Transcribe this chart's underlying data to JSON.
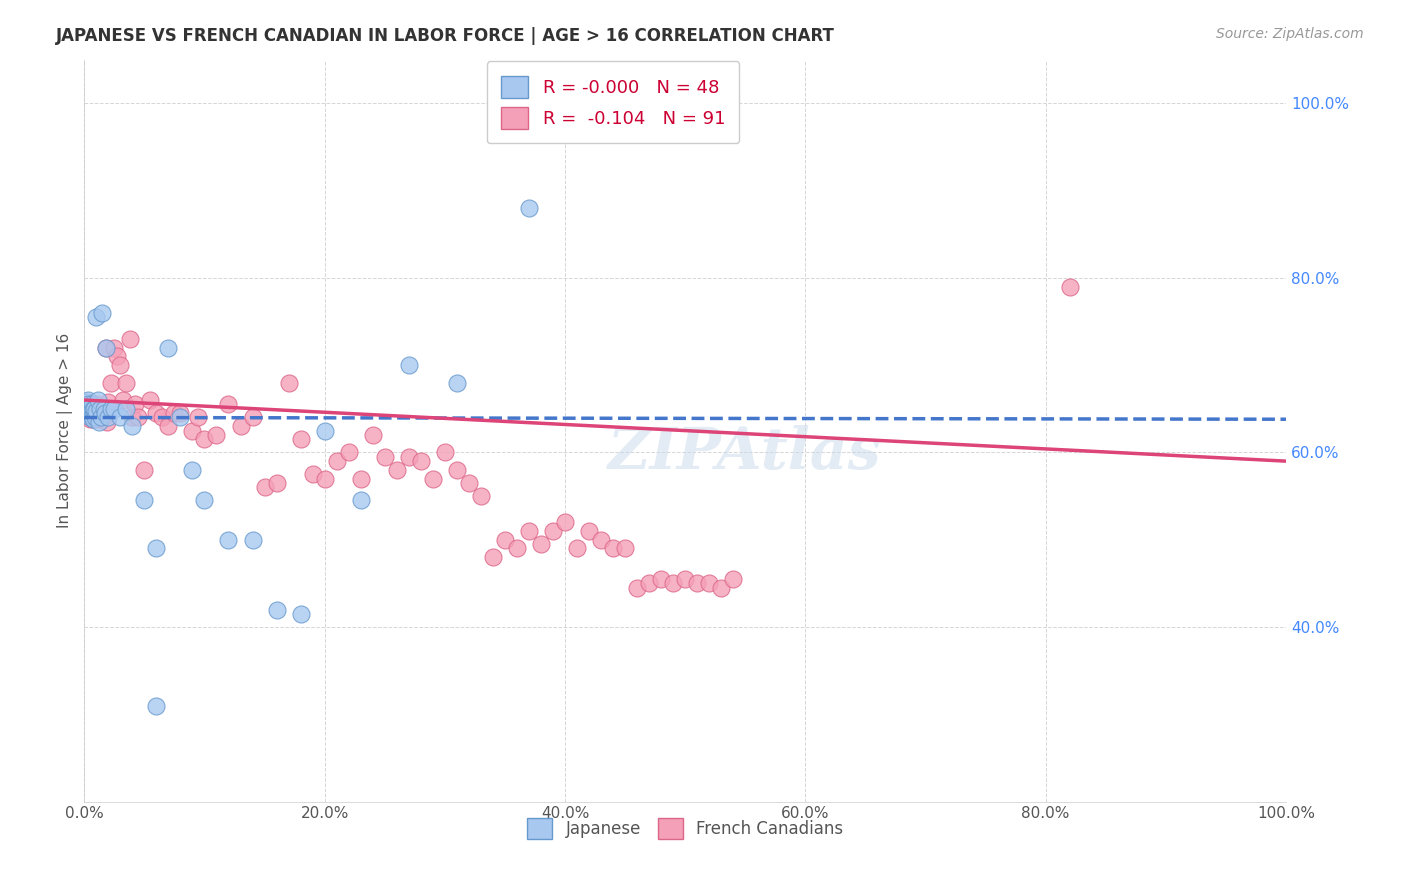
{
  "title": "JAPANESE VS FRENCH CANADIAN IN LABOR FORCE | AGE > 16 CORRELATION CHART",
  "source": "Source: ZipAtlas.com",
  "ylabel": "In Labor Force | Age > 16",
  "watermark": "ZIPAtlas",
  "legend_r_japanese": "-0.000",
  "legend_n_japanese": "48",
  "legend_r_french": "-0.104",
  "legend_n_french": "91",
  "xlim": [
    0,
    1
  ],
  "ylim": [
    0.2,
    1.05
  ],
  "yticks": [
    0.4,
    0.6,
    0.8,
    1.0
  ],
  "ytick_labels": [
    "40.0%",
    "60.0%",
    "80.0%",
    "100.0%"
  ],
  "xticks": [
    0.0,
    0.2,
    0.4,
    0.6,
    0.8,
    1.0
  ],
  "xtick_labels": [
    "0.0%",
    "20.0%",
    "40.0%",
    "60.0%",
    "80.0%",
    "100.0%"
  ],
  "japanese_color": "#a8c8f0",
  "french_color": "#f4a0b8",
  "japanese_edge_color": "#6699cc",
  "french_edge_color": "#dd6688",
  "trend_japanese_color": "#4477cc",
  "trend_french_color": "#dd4477",
  "japanese_trend_start_y": 0.64,
  "japanese_trend_end_y": 0.638,
  "french_trend_start_y": 0.66,
  "french_trend_end_y": 0.59,
  "japanese_x": [
    0.001,
    0.002,
    0.002,
    0.003,
    0.003,
    0.004,
    0.004,
    0.005,
    0.005,
    0.006,
    0.006,
    0.007,
    0.007,
    0.008,
    0.008,
    0.009,
    0.01,
    0.01,
    0.011,
    0.012,
    0.013,
    0.014,
    0.015,
    0.016,
    0.017,
    0.018,
    0.02,
    0.022,
    0.025,
    0.03,
    0.035,
    0.04,
    0.05,
    0.06,
    0.07,
    0.08,
    0.09,
    0.1,
    0.12,
    0.14,
    0.16,
    0.18,
    0.2,
    0.23,
    0.27,
    0.31,
    0.37,
    0.06
  ],
  "japanese_y": [
    0.65,
    0.645,
    0.658,
    0.66,
    0.655,
    0.645,
    0.65,
    0.64,
    0.648,
    0.655,
    0.642,
    0.65,
    0.638,
    0.645,
    0.65,
    0.64,
    0.755,
    0.648,
    0.66,
    0.635,
    0.65,
    0.64,
    0.76,
    0.65,
    0.645,
    0.72,
    0.64,
    0.65,
    0.65,
    0.64,
    0.65,
    0.63,
    0.545,
    0.49,
    0.72,
    0.64,
    0.58,
    0.545,
    0.5,
    0.5,
    0.42,
    0.415,
    0.625,
    0.545,
    0.7,
    0.68,
    0.88,
    0.31
  ],
  "french_x": [
    0.001,
    0.002,
    0.003,
    0.004,
    0.005,
    0.005,
    0.006,
    0.007,
    0.007,
    0.008,
    0.008,
    0.009,
    0.01,
    0.01,
    0.011,
    0.012,
    0.012,
    0.013,
    0.014,
    0.015,
    0.015,
    0.016,
    0.017,
    0.018,
    0.019,
    0.02,
    0.022,
    0.025,
    0.027,
    0.03,
    0.032,
    0.035,
    0.038,
    0.04,
    0.042,
    0.045,
    0.05,
    0.055,
    0.06,
    0.065,
    0.07,
    0.075,
    0.08,
    0.09,
    0.095,
    0.1,
    0.11,
    0.12,
    0.13,
    0.14,
    0.15,
    0.16,
    0.17,
    0.18,
    0.19,
    0.2,
    0.21,
    0.22,
    0.23,
    0.24,
    0.25,
    0.26,
    0.27,
    0.28,
    0.29,
    0.3,
    0.31,
    0.32,
    0.33,
    0.34,
    0.35,
    0.36,
    0.37,
    0.38,
    0.39,
    0.4,
    0.41,
    0.42,
    0.43,
    0.44,
    0.45,
    0.46,
    0.47,
    0.48,
    0.49,
    0.5,
    0.51,
    0.52,
    0.53,
    0.54,
    0.82
  ],
  "french_y": [
    0.645,
    0.648,
    0.65,
    0.642,
    0.638,
    0.645,
    0.64,
    0.652,
    0.638,
    0.645,
    0.64,
    0.638,
    0.655,
    0.648,
    0.645,
    0.64,
    0.638,
    0.648,
    0.64,
    0.638,
    0.645,
    0.64,
    0.648,
    0.72,
    0.635,
    0.658,
    0.68,
    0.72,
    0.71,
    0.7,
    0.66,
    0.68,
    0.73,
    0.64,
    0.655,
    0.64,
    0.58,
    0.66,
    0.645,
    0.64,
    0.63,
    0.645,
    0.645,
    0.625,
    0.64,
    0.615,
    0.62,
    0.655,
    0.63,
    0.64,
    0.56,
    0.565,
    0.68,
    0.615,
    0.575,
    0.57,
    0.59,
    0.6,
    0.57,
    0.62,
    0.595,
    0.58,
    0.595,
    0.59,
    0.57,
    0.6,
    0.58,
    0.565,
    0.55,
    0.48,
    0.5,
    0.49,
    0.51,
    0.495,
    0.51,
    0.52,
    0.49,
    0.51,
    0.5,
    0.49,
    0.49,
    0.445,
    0.45,
    0.455,
    0.45,
    0.455,
    0.45,
    0.45,
    0.445,
    0.455,
    0.79
  ]
}
